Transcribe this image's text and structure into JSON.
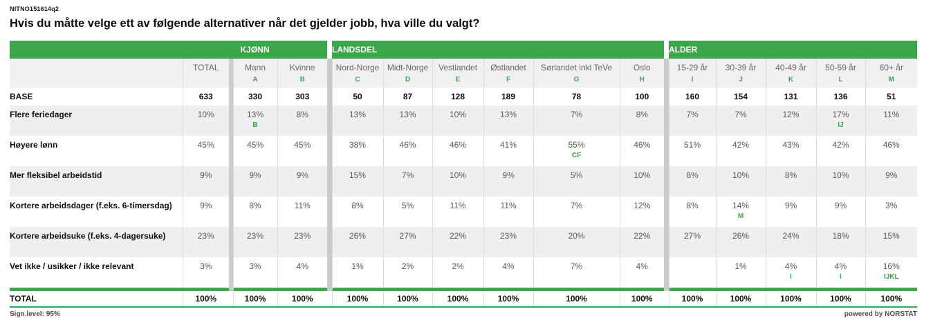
{
  "page": {
    "code": "NITNO151614q2",
    "title": "Hvis du måtte velge ett av følgende alternativer når det gjelder jobb, hva ville du valgt?",
    "footer_left": "Sign.level: 95%",
    "footer_right": "powered by NORSTAT"
  },
  "colors": {
    "green": "#3CA64A",
    "separator": "#cbcbcb",
    "header_bg": "#f0f0f0",
    "row_alt_bg": "#efefef",
    "value_text": "#595959",
    "header_text": "#666666"
  },
  "table": {
    "groups": [
      {
        "label": "KJØNN"
      },
      {
        "label": "LANDSDEL"
      },
      {
        "label": "ALDER"
      }
    ],
    "columns": [
      {
        "label": "TOTAL",
        "letter": ""
      },
      {
        "label": "Mann",
        "letter": "A"
      },
      {
        "label": "Kvinne",
        "letter": "B"
      },
      {
        "label": "Nord-Norge",
        "letter": "C"
      },
      {
        "label": "Midt-Norge",
        "letter": "D"
      },
      {
        "label": "Vestlandet",
        "letter": "E"
      },
      {
        "label": "Østlandet",
        "letter": "F"
      },
      {
        "label": "Sørlandet inkl TeVe",
        "letter": "G"
      },
      {
        "label": "Oslo",
        "letter": "H"
      },
      {
        "label": "15-29 år",
        "letter": "I"
      },
      {
        "label": "30-39 år",
        "letter": "J"
      },
      {
        "label": "40-49 år",
        "letter": "K"
      },
      {
        "label": "50-59 år",
        "letter": "L"
      },
      {
        "label": "60+ år",
        "letter": "M"
      }
    ],
    "base": {
      "label": "BASE",
      "values": [
        "633",
        "330",
        "303",
        "50",
        "87",
        "128",
        "189",
        "78",
        "100",
        "160",
        "154",
        "131",
        "136",
        "51"
      ]
    },
    "rows": [
      {
        "label": "Flere feriedager",
        "cells": [
          {
            "v": "10%",
            "sig": ""
          },
          {
            "v": "13%",
            "sig": "B"
          },
          {
            "v": "8%",
            "sig": ""
          },
          {
            "v": "13%",
            "sig": ""
          },
          {
            "v": "13%",
            "sig": ""
          },
          {
            "v": "10%",
            "sig": ""
          },
          {
            "v": "13%",
            "sig": ""
          },
          {
            "v": "7%",
            "sig": ""
          },
          {
            "v": "8%",
            "sig": ""
          },
          {
            "v": "7%",
            "sig": ""
          },
          {
            "v": "7%",
            "sig": ""
          },
          {
            "v": "12%",
            "sig": ""
          },
          {
            "v": "17%",
            "sig": "IJ"
          },
          {
            "v": "11%",
            "sig": ""
          }
        ]
      },
      {
        "label": "Høyere lønn",
        "cells": [
          {
            "v": "45%",
            "sig": ""
          },
          {
            "v": "45%",
            "sig": ""
          },
          {
            "v": "45%",
            "sig": ""
          },
          {
            "v": "38%",
            "sig": ""
          },
          {
            "v": "46%",
            "sig": ""
          },
          {
            "v": "46%",
            "sig": ""
          },
          {
            "v": "41%",
            "sig": ""
          },
          {
            "v": "55%",
            "sig": "CF"
          },
          {
            "v": "46%",
            "sig": ""
          },
          {
            "v": "51%",
            "sig": ""
          },
          {
            "v": "42%",
            "sig": ""
          },
          {
            "v": "43%",
            "sig": ""
          },
          {
            "v": "42%",
            "sig": ""
          },
          {
            "v": "46%",
            "sig": ""
          }
        ]
      },
      {
        "label": "Mer fleksibel arbeidstid",
        "cells": [
          {
            "v": "9%",
            "sig": ""
          },
          {
            "v": "9%",
            "sig": ""
          },
          {
            "v": "9%",
            "sig": ""
          },
          {
            "v": "15%",
            "sig": ""
          },
          {
            "v": "7%",
            "sig": ""
          },
          {
            "v": "10%",
            "sig": ""
          },
          {
            "v": "9%",
            "sig": ""
          },
          {
            "v": "5%",
            "sig": ""
          },
          {
            "v": "10%",
            "sig": ""
          },
          {
            "v": "8%",
            "sig": ""
          },
          {
            "v": "10%",
            "sig": ""
          },
          {
            "v": "8%",
            "sig": ""
          },
          {
            "v": "10%",
            "sig": ""
          },
          {
            "v": "9%",
            "sig": ""
          }
        ]
      },
      {
        "label": "Kortere arbeidsdager (f.eks. 6-timersdag)",
        "cells": [
          {
            "v": "9%",
            "sig": ""
          },
          {
            "v": "8%",
            "sig": ""
          },
          {
            "v": "11%",
            "sig": ""
          },
          {
            "v": "8%",
            "sig": ""
          },
          {
            "v": "5%",
            "sig": ""
          },
          {
            "v": "11%",
            "sig": ""
          },
          {
            "v": "11%",
            "sig": ""
          },
          {
            "v": "7%",
            "sig": ""
          },
          {
            "v": "12%",
            "sig": ""
          },
          {
            "v": "8%",
            "sig": ""
          },
          {
            "v": "14%",
            "sig": "M"
          },
          {
            "v": "9%",
            "sig": ""
          },
          {
            "v": "9%",
            "sig": ""
          },
          {
            "v": "3%",
            "sig": ""
          }
        ]
      },
      {
        "label": "Kortere arbeidsuke (f.eks. 4-dagersuke)",
        "cells": [
          {
            "v": "23%",
            "sig": ""
          },
          {
            "v": "23%",
            "sig": ""
          },
          {
            "v": "23%",
            "sig": ""
          },
          {
            "v": "26%",
            "sig": ""
          },
          {
            "v": "27%",
            "sig": ""
          },
          {
            "v": "22%",
            "sig": ""
          },
          {
            "v": "23%",
            "sig": ""
          },
          {
            "v": "20%",
            "sig": ""
          },
          {
            "v": "22%",
            "sig": ""
          },
          {
            "v": "27%",
            "sig": ""
          },
          {
            "v": "26%",
            "sig": ""
          },
          {
            "v": "24%",
            "sig": ""
          },
          {
            "v": "18%",
            "sig": ""
          },
          {
            "v": "15%",
            "sig": ""
          }
        ]
      },
      {
        "label": "Vet ikke / usikker / ikke relevant",
        "cells": [
          {
            "v": "3%",
            "sig": ""
          },
          {
            "v": "3%",
            "sig": ""
          },
          {
            "v": "4%",
            "sig": ""
          },
          {
            "v": "1%",
            "sig": ""
          },
          {
            "v": "2%",
            "sig": ""
          },
          {
            "v": "2%",
            "sig": ""
          },
          {
            "v": "4%",
            "sig": ""
          },
          {
            "v": "7%",
            "sig": ""
          },
          {
            "v": "4%",
            "sig": ""
          },
          {
            "v": "",
            "sig": ""
          },
          {
            "v": "1%",
            "sig": ""
          },
          {
            "v": "4%",
            "sig": "I"
          },
          {
            "v": "4%",
            "sig": "I"
          },
          {
            "v": "16%",
            "sig": "IJKL"
          }
        ]
      }
    ],
    "total": {
      "label": "TOTAL",
      "values": [
        "100%",
        "100%",
        "100%",
        "100%",
        "100%",
        "100%",
        "100%",
        "100%",
        "100%",
        "100%",
        "100%",
        "100%",
        "100%",
        "100%"
      ]
    }
  }
}
